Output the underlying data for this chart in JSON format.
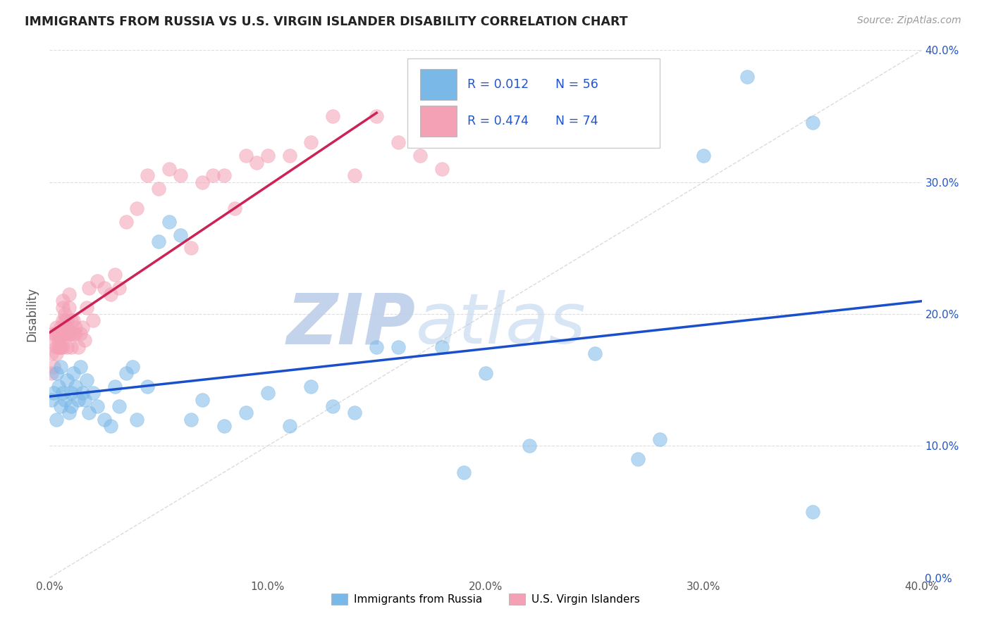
{
  "title": "IMMIGRANTS FROM RUSSIA VS U.S. VIRGIN ISLANDER DISABILITY CORRELATION CHART",
  "source": "Source: ZipAtlas.com",
  "ylabel": "Disability",
  "xlim": [
    0.0,
    0.4
  ],
  "ylim": [
    0.0,
    0.4
  ],
  "xticks": [
    0.0,
    0.1,
    0.2,
    0.3,
    0.4
  ],
  "yticks": [
    0.0,
    0.1,
    0.2,
    0.3,
    0.4
  ],
  "xtick_labels": [
    "0.0%",
    "10.0%",
    "20.0%",
    "30.0%",
    "40.0%"
  ],
  "ytick_labels": [
    "0.0%",
    "10.0%",
    "20.0%",
    "30.0%",
    "40.0%"
  ],
  "series1_color": "#7ab8e8",
  "series2_color": "#f4a0b5",
  "series1_label": "Immigrants from Russia",
  "series2_label": "U.S. Virgin Islanders",
  "R1": 0.012,
  "N1": 56,
  "R2": 0.474,
  "N2": 74,
  "legend_R_color": "#2255cc",
  "trend1_color": "#1a4fcc",
  "trend2_color": "#cc2255",
  "watermark": "ZIPatlas",
  "watermark_color": "#ccddf5",
  "background_color": "#ffffff",
  "title_color": "#222222",
  "series1_x": [
    0.001,
    0.002,
    0.003,
    0.003,
    0.004,
    0.005,
    0.005,
    0.006,
    0.007,
    0.008,
    0.009,
    0.01,
    0.01,
    0.011,
    0.012,
    0.013,
    0.014,
    0.015,
    0.016,
    0.017,
    0.018,
    0.02,
    0.022,
    0.025,
    0.028,
    0.03,
    0.032,
    0.035,
    0.038,
    0.04,
    0.045,
    0.05,
    0.055,
    0.06,
    0.065,
    0.07,
    0.08,
    0.09,
    0.1,
    0.11,
    0.12,
    0.13,
    0.14,
    0.15,
    0.16,
    0.18,
    0.2,
    0.22,
    0.25,
    0.28,
    0.3,
    0.32,
    0.35,
    0.27,
    0.19,
    0.35
  ],
  "series1_y": [
    0.135,
    0.14,
    0.12,
    0.155,
    0.145,
    0.13,
    0.16,
    0.14,
    0.135,
    0.15,
    0.125,
    0.14,
    0.13,
    0.155,
    0.145,
    0.135,
    0.16,
    0.14,
    0.135,
    0.15,
    0.125,
    0.14,
    0.13,
    0.12,
    0.115,
    0.145,
    0.13,
    0.155,
    0.16,
    0.12,
    0.145,
    0.255,
    0.27,
    0.26,
    0.12,
    0.135,
    0.115,
    0.125,
    0.14,
    0.115,
    0.145,
    0.13,
    0.125,
    0.175,
    0.175,
    0.175,
    0.155,
    0.1,
    0.17,
    0.105,
    0.32,
    0.38,
    0.345,
    0.09,
    0.08,
    0.05
  ],
  "series2_x": [
    0.001,
    0.001,
    0.002,
    0.002,
    0.002,
    0.003,
    0.003,
    0.003,
    0.003,
    0.004,
    0.004,
    0.004,
    0.005,
    0.005,
    0.005,
    0.005,
    0.006,
    0.006,
    0.006,
    0.006,
    0.006,
    0.007,
    0.007,
    0.007,
    0.007,
    0.007,
    0.008,
    0.008,
    0.008,
    0.008,
    0.009,
    0.009,
    0.009,
    0.01,
    0.01,
    0.01,
    0.011,
    0.011,
    0.012,
    0.012,
    0.013,
    0.014,
    0.015,
    0.016,
    0.017,
    0.018,
    0.02,
    0.022,
    0.025,
    0.028,
    0.03,
    0.032,
    0.035,
    0.04,
    0.045,
    0.05,
    0.055,
    0.06,
    0.065,
    0.07,
    0.075,
    0.08,
    0.085,
    0.09,
    0.095,
    0.1,
    0.11,
    0.12,
    0.13,
    0.14,
    0.15,
    0.16,
    0.17,
    0.18
  ],
  "series2_y": [
    0.155,
    0.17,
    0.185,
    0.16,
    0.18,
    0.185,
    0.175,
    0.17,
    0.19,
    0.175,
    0.18,
    0.185,
    0.175,
    0.185,
    0.175,
    0.19,
    0.185,
    0.175,
    0.205,
    0.21,
    0.195,
    0.185,
    0.19,
    0.185,
    0.195,
    0.2,
    0.175,
    0.185,
    0.19,
    0.195,
    0.185,
    0.205,
    0.215,
    0.175,
    0.185,
    0.195,
    0.185,
    0.195,
    0.185,
    0.19,
    0.175,
    0.185,
    0.19,
    0.18,
    0.205,
    0.22,
    0.195,
    0.225,
    0.22,
    0.215,
    0.23,
    0.22,
    0.27,
    0.28,
    0.305,
    0.295,
    0.31,
    0.305,
    0.25,
    0.3,
    0.305,
    0.305,
    0.28,
    0.32,
    0.315,
    0.32,
    0.32,
    0.33,
    0.35,
    0.305,
    0.35,
    0.33,
    0.32,
    0.31
  ],
  "diag_line_color": "#cccccc",
  "grid_color": "#dddddd"
}
